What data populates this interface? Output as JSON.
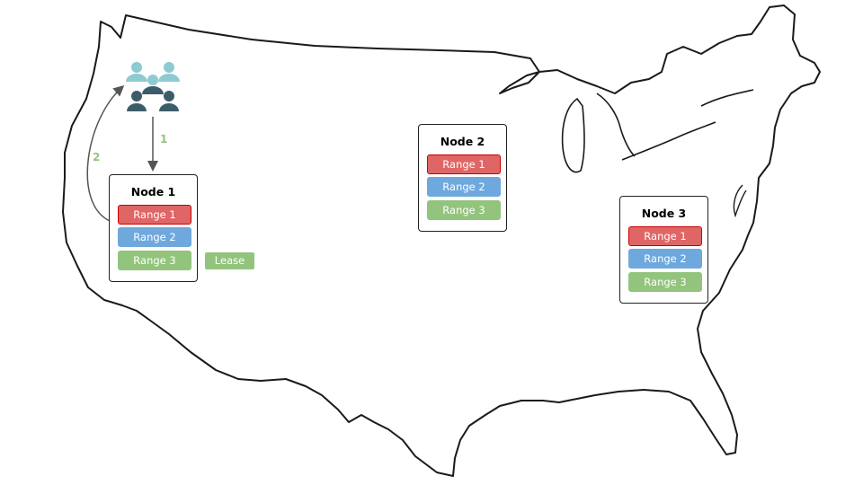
{
  "nodes": [
    {
      "title": "Node 1",
      "ranges": [
        "Range 1",
        "Range 2",
        "Range 3"
      ]
    },
    {
      "title": "Node 2",
      "ranges": [
        "Range 1",
        "Range 2",
        "Range 3"
      ]
    },
    {
      "title": "Node 3",
      "ranges": [
        "Range 1",
        "Range 2",
        "Range 3"
      ]
    }
  ],
  "lease_label": "Lease",
  "steps": {
    "step1": "1",
    "step2": "2"
  },
  "colors": {
    "range1_fill": "#e06666",
    "range2_fill": "#6fa8dc",
    "range3_fill": "#93c47d",
    "lease_fill": "#93c47d",
    "step_label": "#93c47d",
    "users_light": "#8fcad3",
    "users_dark": "#3d5c6a",
    "arrow": "#555555"
  },
  "icons": {
    "users": "users-group-icon"
  }
}
